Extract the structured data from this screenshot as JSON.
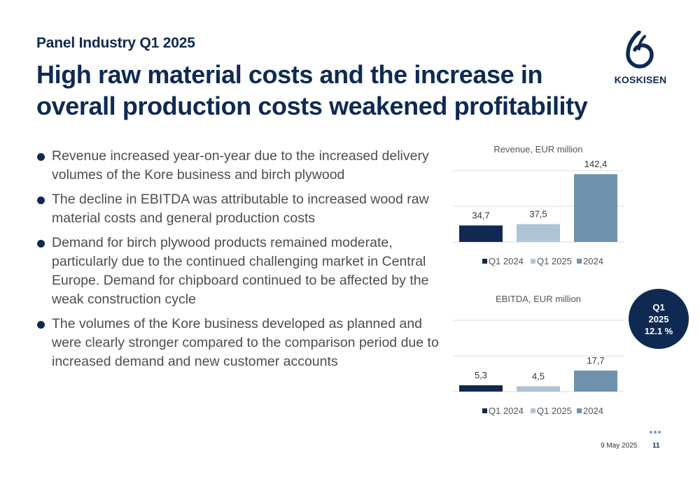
{
  "header": {
    "subtitle": "Panel Industry Q1 2025",
    "title": "High raw material costs and the increase in overall production costs weakened profitability"
  },
  "logo": {
    "text": "KOSKISEN"
  },
  "bullets": [
    "Revenue increased year-on-year due to the increased delivery volumes of the Kore business and birch plywood",
    "The decline in EBITDA was attributable to increased wood raw material costs and general production costs",
    "Demand for birch plywood products remained moderate, particularly due to the continued challenging market in Central Europe. Demand for chipboard continued to be affected by the weak construction cycle",
    "The volumes of the Kore business developed as planned and were clearly stronger compared to the comparison period due to increased demand and new customer accounts"
  ],
  "badge": {
    "line1": "Q1",
    "line2": "2025",
    "line3": "12.1 %"
  },
  "footer": {
    "date": "9 May 2025",
    "page": "11"
  },
  "colors": {
    "navy": "#0f2a52",
    "light_blue": "#aec4d6",
    "steel_blue": "#6f93ad",
    "grid": "#dcdcdc"
  },
  "chart_data": [
    {
      "type": "bar",
      "title": "Revenue, EUR million",
      "categories": [
        "Q1 2024",
        "Q1 2025",
        "2024"
      ],
      "values": [
        34.7,
        37.5,
        142.4
      ],
      "labels": [
        "34,7",
        "37,5",
        "142,4"
      ],
      "colors": [
        "#0f2a52",
        "#aec4d6",
        "#6f93ad"
      ],
      "ylim": [
        0,
        150
      ],
      "grid": true,
      "legend": "bottom"
    },
    {
      "type": "bar",
      "title": "EBITDA, EUR million",
      "categories": [
        "Q1 2024",
        "Q1 2025",
        "2024"
      ],
      "values": [
        5.3,
        4.5,
        17.7
      ],
      "labels": [
        "5,3",
        "4,5",
        "17,7"
      ],
      "colors": [
        "#0f2a52",
        "#aec4d6",
        "#6f93ad"
      ],
      "ylim": [
        0,
        60
      ],
      "grid": true,
      "legend": "bottom"
    }
  ]
}
